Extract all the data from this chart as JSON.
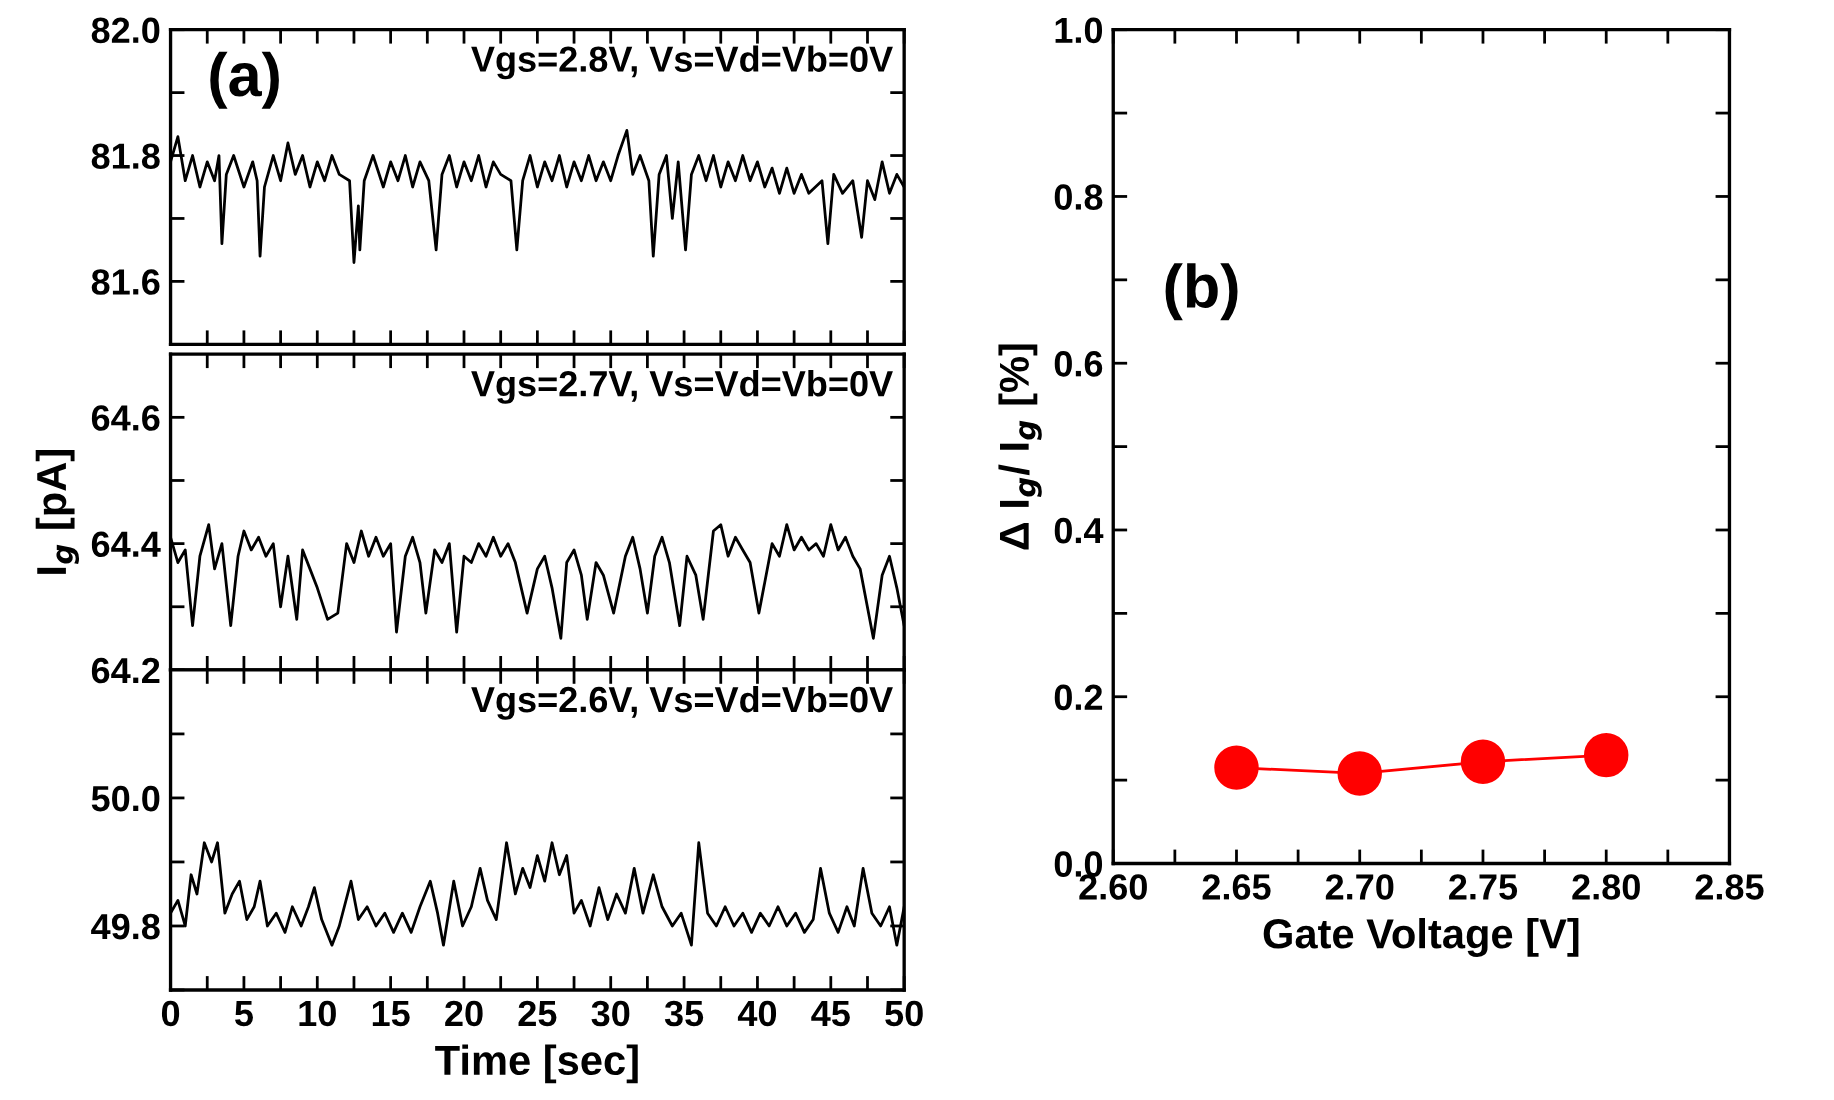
{
  "chart_data": [
    {
      "type": "line",
      "title": "(a)",
      "annotations": [
        "Vgs=2.8V, Vs=Vd=Vb=0V"
      ],
      "tick_labels": "y",
      "marker": "none",
      "line_style": "solid",
      "grid": false,
      "legend": false,
      "xlim": [
        0,
        50
      ],
      "xticks": [
        0,
        {
          "value": 2.5,
          "label": null
        },
        5,
        {
          "value": 7.5,
          "label": null
        },
        10,
        {
          "value": 12.5,
          "label": null
        },
        15,
        {
          "value": 17.5,
          "label": null
        },
        20,
        {
          "value": 22.5,
          "label": null
        },
        25,
        {
          "value": 27.5,
          "label": null
        },
        30,
        {
          "value": 32.5,
          "label": null
        },
        35,
        {
          "value": 37.5,
          "label": null
        },
        40,
        {
          "value": 42.5,
          "label": null
        },
        45,
        {
          "value": 47.5,
          "label": null
        },
        50
      ],
      "ylim": [
        81.5,
        82.0
      ],
      "yticks": [
        81.6,
        {
          "value": 81.7,
          "label": null
        },
        81.8,
        {
          "value": 81.9,
          "label": null
        },
        {
          "value": 82.0,
          "label": "82.0"
        }
      ],
      "series": [
        {
          "color": "#000000",
          "x": [
            0,
            0.5,
            1,
            1.5,
            2,
            2.5,
            3,
            3.3,
            3.5,
            3.8,
            4.3,
            5,
            5.6,
            5.9,
            6.1,
            6.4,
            7,
            7.5,
            8,
            8.5,
            9,
            9.5,
            10,
            10.5,
            11,
            11.5,
            12.2,
            12.5,
            12.8,
            12.9,
            13.2,
            13.8,
            14.5,
            15,
            15.5,
            16,
            16.5,
            17,
            17.6,
            18.1,
            18.5,
            19,
            19.5,
            20,
            20.5,
            21,
            21.5,
            22,
            22.5,
            23.2,
            23.6,
            24,
            24.5,
            25,
            25.5,
            26,
            26.5,
            27,
            27.5,
            28,
            28.5,
            29,
            29.5,
            30,
            30.5,
            31.1,
            31.5,
            32,
            32.6,
            32.9,
            33.3,
            33.8,
            34.2,
            34.6,
            35.1,
            35.5,
            36,
            36.5,
            37,
            37.5,
            38,
            38.5,
            39,
            39.5,
            40,
            40.5,
            41,
            41.5,
            42,
            42.5,
            43,
            43.5,
            44.4,
            44.8,
            45.2,
            45.8,
            46.5,
            47.1,
            47.5,
            48,
            48.5,
            49,
            49.5,
            50
          ],
          "values": [
            81.79,
            81.83,
            81.76,
            81.8,
            81.75,
            81.79,
            81.76,
            81.8,
            81.66,
            81.77,
            81.8,
            81.75,
            81.79,
            81.76,
            81.64,
            81.75,
            81.8,
            81.76,
            81.82,
            81.77,
            81.8,
            81.75,
            81.79,
            81.76,
            81.8,
            81.77,
            81.76,
            81.63,
            81.72,
            81.65,
            81.76,
            81.8,
            81.75,
            81.79,
            81.76,
            81.8,
            81.75,
            81.79,
            81.76,
            81.65,
            81.77,
            81.8,
            81.75,
            81.79,
            81.76,
            81.8,
            81.75,
            81.79,
            81.77,
            81.76,
            81.65,
            81.76,
            81.8,
            81.75,
            81.79,
            81.76,
            81.8,
            81.75,
            81.79,
            81.76,
            81.8,
            81.76,
            81.79,
            81.76,
            81.8,
            81.84,
            81.77,
            81.8,
            81.76,
            81.64,
            81.77,
            81.8,
            81.7,
            81.79,
            81.65,
            81.77,
            81.8,
            81.76,
            81.8,
            81.75,
            81.79,
            81.76,
            81.8,
            81.76,
            81.79,
            81.75,
            81.78,
            81.74,
            81.78,
            81.74,
            81.77,
            81.74,
            81.76,
            81.66,
            81.77,
            81.74,
            81.76,
            81.67,
            81.76,
            81.73,
            81.79,
            81.74,
            81.77,
            81.75
          ]
        }
      ]
    },
    {
      "type": "line",
      "ylabel": "I$_{g}$ [pA]",
      "annotations": [
        "Vgs=2.7V, Vs=Vd=Vb=0V"
      ],
      "tick_labels": "y",
      "marker": "none",
      "line_style": "solid",
      "grid": false,
      "legend": false,
      "xlim": [
        0,
        50
      ],
      "xticks": [
        0,
        {
          "value": 2.5,
          "label": null
        },
        5,
        {
          "value": 7.5,
          "label": null
        },
        10,
        {
          "value": 12.5,
          "label": null
        },
        15,
        {
          "value": 17.5,
          "label": null
        },
        20,
        {
          "value": 22.5,
          "label": null
        },
        25,
        {
          "value": 27.5,
          "label": null
        },
        30,
        {
          "value": 32.5,
          "label": null
        },
        35,
        {
          "value": 37.5,
          "label": null
        },
        40,
        {
          "value": 42.5,
          "label": null
        },
        45,
        {
          "value": 47.5,
          "label": null
        },
        50
      ],
      "ylim": [
        64.2,
        64.7
      ],
      "yticks": [
        64.2,
        {
          "value": 64.3,
          "label": null
        },
        64.4,
        {
          "value": 64.5,
          "label": null
        },
        64.6
      ],
      "series": [
        {
          "color": "#000000",
          "x": [
            0,
            0.5,
            1,
            1.5,
            2,
            2.6,
            3,
            3.5,
            4.1,
            4.6,
            5,
            5.5,
            6,
            6.5,
            7,
            7.5,
            8,
            8.6,
            9,
            9.5,
            10,
            10.7,
            11.4,
            12,
            12.5,
            13,
            13.5,
            14,
            14.5,
            15,
            15.4,
            16,
            16.5,
            17,
            17.4,
            18,
            18.5,
            19,
            19.5,
            20,
            20.5,
            21,
            21.5,
            22,
            22.5,
            23,
            23.5,
            24.3,
            25,
            25.5,
            26,
            26.6,
            27,
            27.5,
            28,
            28.4,
            29,
            29.5,
            30.2,
            31,
            31.5,
            32,
            32.5,
            33,
            33.5,
            34,
            34.7,
            35.2,
            35.8,
            36.3,
            37,
            37.5,
            38,
            38.5,
            39,
            39.5,
            40.1,
            41,
            41.5,
            42,
            42.5,
            43,
            43.5,
            44,
            44.5,
            45,
            45.5,
            46,
            46.5,
            47,
            47.9,
            48.5,
            49,
            49.5,
            50
          ],
          "values": [
            64.41,
            64.37,
            64.39,
            64.27,
            64.38,
            64.43,
            64.36,
            64.4,
            64.27,
            64.38,
            64.42,
            64.39,
            64.41,
            64.38,
            64.4,
            64.3,
            64.38,
            64.28,
            64.39,
            64.36,
            64.33,
            64.28,
            64.29,
            64.4,
            64.37,
            64.42,
            64.38,
            64.41,
            64.38,
            64.4,
            64.26,
            64.38,
            64.41,
            64.37,
            64.29,
            64.39,
            64.37,
            64.4,
            64.26,
            64.38,
            64.37,
            64.4,
            64.38,
            64.41,
            64.38,
            64.4,
            64.37,
            64.29,
            64.36,
            64.38,
            64.33,
            64.25,
            64.37,
            64.39,
            64.35,
            64.28,
            64.37,
            64.35,
            64.29,
            64.38,
            64.41,
            64.36,
            64.29,
            64.38,
            64.41,
            64.37,
            64.27,
            64.38,
            64.35,
            64.28,
            64.42,
            64.43,
            64.38,
            64.41,
            64.39,
            64.37,
            64.29,
            64.4,
            64.38,
            64.43,
            64.39,
            64.41,
            64.39,
            64.4,
            64.38,
            64.43,
            64.39,
            64.41,
            64.38,
            64.36,
            64.25,
            64.35,
            64.38,
            64.33,
            64.27
          ]
        }
      ]
    },
    {
      "type": "line",
      "xlabel": "Time [sec]",
      "annotations": [
        "Vgs=2.6V, Vs=Vd=Vb=0V"
      ],
      "marker": "none",
      "line_style": "solid",
      "grid": false,
      "legend": false,
      "xlim": [
        0,
        50
      ],
      "xticks": [
        0,
        {
          "value": 2.5,
          "label": null
        },
        5,
        {
          "value": 7.5,
          "label": null
        },
        10,
        {
          "value": 12.5,
          "label": null
        },
        15,
        {
          "value": 17.5,
          "label": null
        },
        20,
        {
          "value": 22.5,
          "label": null
        },
        25,
        {
          "value": 27.5,
          "label": null
        },
        30,
        {
          "value": 32.5,
          "label": null
        },
        35,
        {
          "value": 37.5,
          "label": null
        },
        40,
        {
          "value": 42.5,
          "label": null
        },
        45,
        {
          "value": 47.5,
          "label": null
        },
        50
      ],
      "ylim": [
        49.7,
        50.2
      ],
      "yticks": [
        {
          "value": 49.7,
          "label": null
        },
        49.8,
        {
          "value": 49.9,
          "label": null
        },
        {
          "value": 50.0,
          "label": "50.0"
        },
        {
          "value": 50.1,
          "label": null
        }
      ],
      "series": [
        {
          "color": "#000000",
          "x": [
            0,
            0.5,
            1,
            1.4,
            1.8,
            2.3,
            2.8,
            3.2,
            3.7,
            4.2,
            4.7,
            5.2,
            5.7,
            6.1,
            6.6,
            7.2,
            7.8,
            8.3,
            8.9,
            9.4,
            9.8,
            10.3,
            11,
            11.5,
            12.3,
            12.8,
            13.4,
            14,
            14.6,
            15.2,
            15.8,
            16.4,
            17,
            17.7,
            18.2,
            18.6,
            19.3,
            19.9,
            20.5,
            21.1,
            21.6,
            22.2,
            22.9,
            23.5,
            24,
            24.5,
            25,
            25.5,
            26,
            26.5,
            27,
            27.5,
            28,
            28.6,
            29.2,
            29.8,
            30.4,
            31,
            31.6,
            32.2,
            32.9,
            33.5,
            34.2,
            34.8,
            35.5,
            36,
            36.6,
            37.2,
            37.8,
            38.4,
            39,
            39.6,
            40.2,
            40.8,
            41.4,
            42,
            42.6,
            43.2,
            43.8,
            44.3,
            44.9,
            45.5,
            46.1,
            46.6,
            47.2,
            47.8,
            48.4,
            49,
            49.5,
            50
          ],
          "values": [
            49.82,
            49.84,
            49.8,
            49.88,
            49.85,
            49.93,
            49.9,
            49.93,
            49.82,
            49.85,
            49.87,
            49.81,
            49.83,
            49.87,
            49.8,
            49.82,
            49.79,
            49.83,
            49.8,
            49.83,
            49.86,
            49.81,
            49.77,
            49.8,
            49.87,
            49.81,
            49.83,
            49.8,
            49.82,
            49.79,
            49.82,
            49.79,
            49.83,
            49.87,
            49.82,
            49.77,
            49.87,
            49.8,
            49.83,
            49.89,
            49.84,
            49.81,
            49.93,
            49.85,
            49.89,
            49.86,
            49.91,
            49.87,
            49.93,
            49.88,
            49.91,
            49.82,
            49.84,
            49.8,
            49.86,
            49.81,
            49.85,
            49.82,
            49.89,
            49.82,
            49.88,
            49.83,
            49.8,
            49.82,
            49.77,
            49.93,
            49.82,
            49.8,
            49.83,
            49.8,
            49.82,
            49.79,
            49.82,
            49.8,
            49.83,
            49.8,
            49.82,
            49.79,
            49.81,
            49.89,
            49.82,
            49.79,
            49.83,
            49.8,
            49.89,
            49.82,
            49.8,
            49.83,
            49.77,
            49.83
          ]
        }
      ]
    },
    {
      "type": "line",
      "title": "(b)",
      "xlabel": "Gate Voltage [V]",
      "ylabel": "Δ I$_{g}$/ I$_{g}$ [%]",
      "marker": "circle",
      "line_style": "solid",
      "grid": false,
      "legend": false,
      "xlim": [
        2.6,
        2.85
      ],
      "xticks": [
        {
          "value": 2.6,
          "label": "2.60"
        },
        {
          "value": 2.625,
          "label": null
        },
        2.65,
        {
          "value": 2.675,
          "label": null
        },
        {
          "value": 2.7,
          "label": "2.70"
        },
        {
          "value": 2.725,
          "label": null
        },
        2.75,
        {
          "value": 2.775,
          "label": null
        },
        {
          "value": 2.8,
          "label": "2.80"
        },
        {
          "value": 2.825,
          "label": null
        },
        2.85
      ],
      "ylim": [
        0.0,
        1.0
      ],
      "yticks": [
        {
          "value": 0.0,
          "label": "0.0"
        },
        {
          "value": 0.1,
          "label": null
        },
        0.2,
        {
          "value": 0.3,
          "label": null
        },
        0.4,
        {
          "value": 0.5,
          "label": null
        },
        0.6,
        {
          "value": 0.7,
          "label": null
        },
        0.8,
        {
          "value": 0.9,
          "label": null
        },
        {
          "value": 1.0,
          "label": "1.0"
        }
      ],
      "series": [
        {
          "color": "#ff0000",
          "x": [
            2.65,
            2.7,
            2.75,
            2.8
          ],
          "values": [
            0.115,
            0.108,
            0.122,
            0.13
          ]
        }
      ]
    }
  ]
}
